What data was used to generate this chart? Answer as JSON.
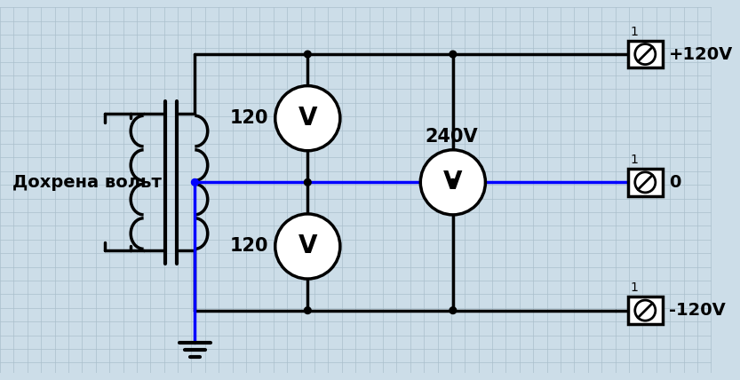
{
  "bg_color": "#ccdde8",
  "line_color": "#000000",
  "blue_color": "#0000ff",
  "grid_color": "#aabfcc",
  "text_label": "Дохрена вольт",
  "label_120_top": "120",
  "label_120_bot": "120",
  "label_240": "240V",
  "label_plus": "+120V",
  "label_zero": "0",
  "label_minus": "-120V",
  "label_1": "1",
  "voltmeter_V": "V",
  "figsize": [
    8.33,
    4.28
  ],
  "dpi": 100
}
